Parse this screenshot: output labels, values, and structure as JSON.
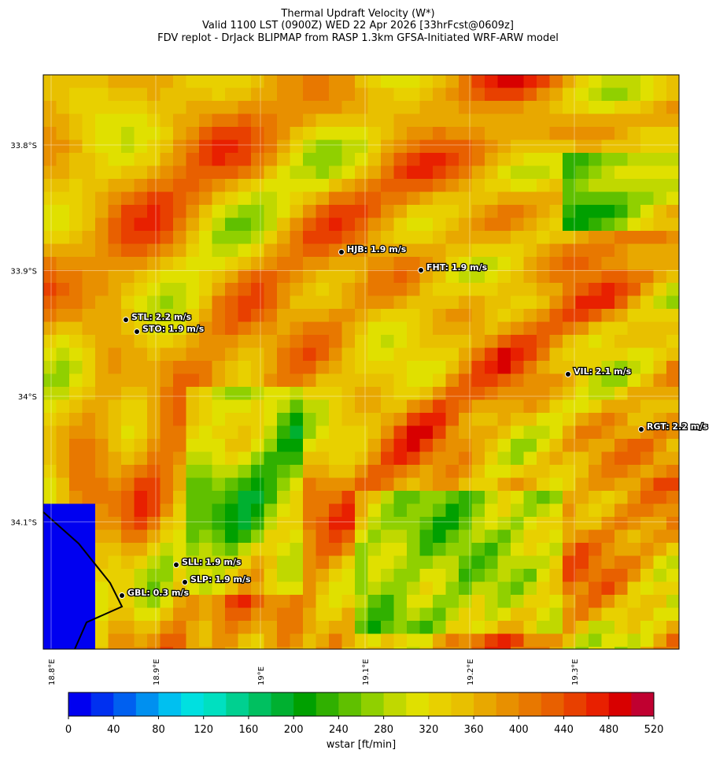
{
  "chart_data": {
    "type": "map",
    "title": "Thermal Updraft Velocity (W*)",
    "subtitle": "Valid 1100 LST (0900Z) WED 22 Apr 2026 [33hrFcst@0609z]",
    "subtitle2": "FDV replot - DrJack BLIPMAP from RASP 1.3km GFSA-Initiated WRF-ARW model",
    "xlim": [
      18.7925,
      19.4
    ],
    "ylim": [
      -34.2013,
      -33.7442
    ],
    "xticks": [
      {
        "value": 18.8,
        "label": "18.8°E"
      },
      {
        "value": 18.9,
        "label": "18.9°E"
      },
      {
        "value": 19.0,
        "label": "19°E"
      },
      {
        "value": 19.1,
        "label": "19.1°E"
      },
      {
        "value": 19.2,
        "label": "19.2°E"
      },
      {
        "value": 19.3,
        "label": "19.3°E"
      }
    ],
    "yticks": [
      {
        "value": -33.8,
        "label": "33.8°S"
      },
      {
        "value": -33.9,
        "label": "33.9°S"
      },
      {
        "value": -34.0,
        "label": "34°S"
      },
      {
        "value": -34.1,
        "label": "34.1°S"
      }
    ],
    "stations": [
      "HJB: 1.9 m/s",
      "FHT: 1.9 m/s",
      "STL: 2.2 m/s",
      "STO: 1.9 m/s",
      "VIL: 2.1 m/s",
      "RGT: 2.2 m/s",
      "SLL: 1.9 m/s",
      "SLP: 1.9 m/s",
      "GBL: 0.3 m/s"
    ],
    "colorbar": {
      "label": "wstar [ft/min]",
      "lim": [
        0,
        520
      ],
      "ticks": [
        0,
        40,
        80,
        120,
        160,
        200,
        240,
        280,
        320,
        360,
        400,
        440,
        480,
        520
      ],
      "colors": [
        "#0000f0",
        "#0030f0",
        "#0060f0",
        "#0090f0",
        "#00c0f0",
        "#00e0e0",
        "#00e0c0",
        "#00d090",
        "#00c060",
        "#00b030",
        "#00a000",
        "#30b000",
        "#60c000",
        "#90d000",
        "#c0d800",
        "#e0e000",
        "#e8d000",
        "#e8c000",
        "#e8a800",
        "#e89000",
        "#e87800",
        "#e86000",
        "#e84000",
        "#e82000",
        "#d80000",
        "#c00030"
      ]
    }
  }
}
